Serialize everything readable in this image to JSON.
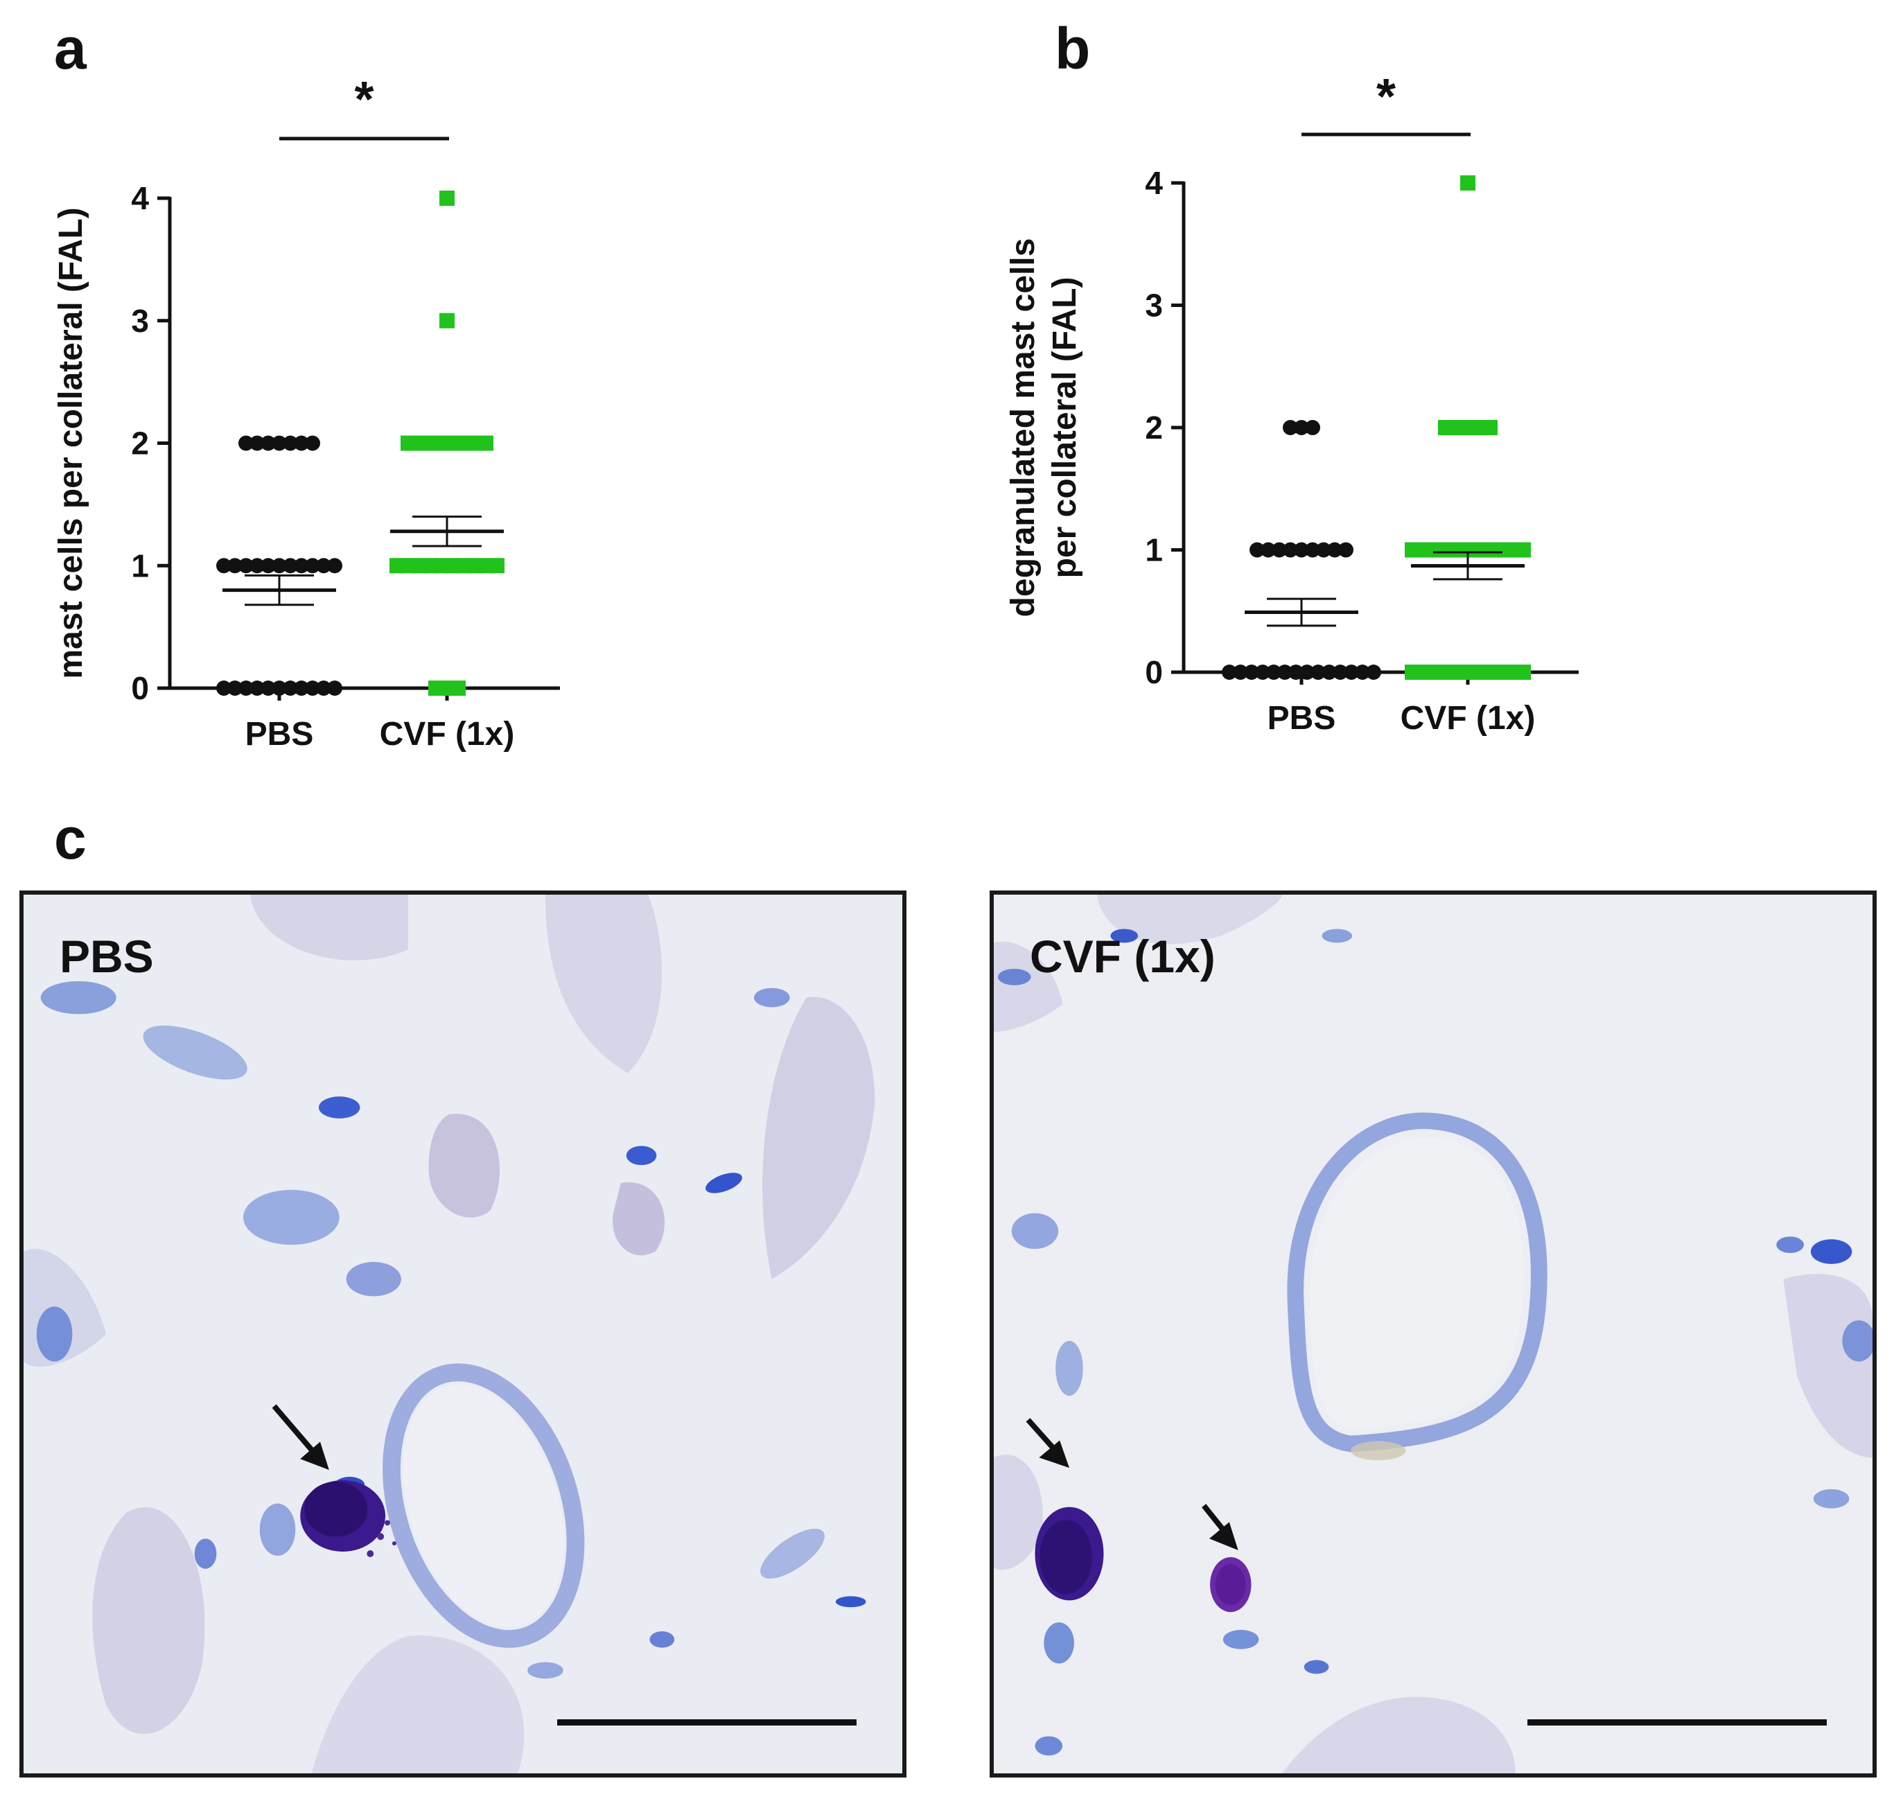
{
  "panels": {
    "a": "a",
    "b": "b",
    "c": "c"
  },
  "chart_data": [
    {
      "id": "a",
      "type": "scatter",
      "ylabel": "mast cells per collateral (FAL)",
      "categories": [
        "PBS",
        "CVF (1x)"
      ],
      "ylim": [
        0,
        4
      ],
      "yticks": [
        "0",
        "1",
        "2",
        "3",
        "4"
      ],
      "significance": "*",
      "colors": {
        "PBS": "#111111",
        "CVF (1x)": "#22c21c"
      },
      "series": [
        {
          "name": "PBS",
          "points": [
            {
              "y": 2,
              "n": 7
            },
            {
              "y": 1,
              "n": 11
            },
            {
              "y": 0,
              "n": 11
            }
          ],
          "mean": 0.8,
          "sem": 0.12
        },
        {
          "name": "CVF (1x)",
          "points": [
            {
              "y": 4,
              "n": 1
            },
            {
              "y": 3,
              "n": 1
            },
            {
              "y": 2,
              "n": 8
            },
            {
              "y": 1,
              "n": 10
            },
            {
              "y": 0,
              "n": 3
            }
          ],
          "mean": 1.28,
          "sem": 0.12
        }
      ]
    },
    {
      "id": "b",
      "type": "scatter",
      "ylabel": "degranulated mast cells per collateral (FAL)",
      "ylabel_lines": [
        "degranulated mast cells",
        "per collateral (FAL)"
      ],
      "categories": [
        "PBS",
        "CVF (1x)"
      ],
      "ylim": [
        0,
        4
      ],
      "yticks": [
        "0",
        "1",
        "2",
        "3",
        "4"
      ],
      "significance": "*",
      "colors": {
        "PBS": "#111111",
        "CVF (1x)": "#22c21c"
      },
      "series": [
        {
          "name": "PBS",
          "points": [
            {
              "y": 2,
              "n": 3
            },
            {
              "y": 1,
              "n": 9
            },
            {
              "y": 0,
              "n": 14
            }
          ],
          "mean": 0.49,
          "sem": 0.11
        },
        {
          "name": "CVF (1x)",
          "points": [
            {
              "y": 4,
              "n": 1
            },
            {
              "y": 2,
              "n": 5
            },
            {
              "y": 1,
              "n": 11
            },
            {
              "y": 0,
              "n": 11
            }
          ],
          "mean": 0.87,
          "sem": 0.11
        }
      ]
    }
  ],
  "micrographs": [
    {
      "label": "PBS"
    },
    {
      "label": "CVF (1x)"
    }
  ]
}
